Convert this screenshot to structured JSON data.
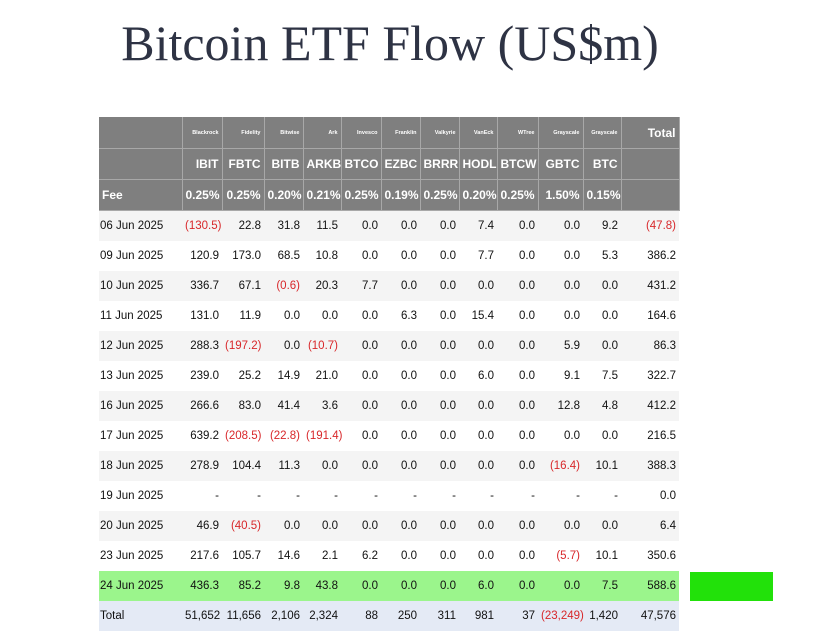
{
  "title": "Bitcoin ETF Flow (US$m)",
  "colors": {
    "header_bg": "#7f7f7f",
    "negative": "#d8272a",
    "highlight_row": "#9bf58c",
    "green_box": "#22e10a"
  },
  "header": {
    "issuers": [
      "Blackrock",
      "Fidelity",
      "Bitwise",
      "Ark",
      "Invesco",
      "Franklin",
      "Valkyrie",
      "VanEck",
      "WTree",
      "Grayscale",
      "Grayscale"
    ],
    "total_label": "Total",
    "tickers": [
      "IBIT",
      "FBTC",
      "BITB",
      "ARKB",
      "BTCO",
      "EZBC",
      "BRRR",
      "HODL",
      "BTCW",
      "GBTC",
      "BTC"
    ],
    "fee_label": "Fee",
    "fees": [
      "0.25%",
      "0.25%",
      "0.20%",
      "0.21%",
      "0.25%",
      "0.19%",
      "0.25%",
      "0.20%",
      "0.25%",
      "1.50%",
      "0.15%"
    ]
  },
  "rows": [
    {
      "date": "06 Jun 2025",
      "values": [
        "(130.5)",
        "22.8",
        "31.8",
        "11.5",
        "0.0",
        "0.0",
        "0.0",
        "7.4",
        "0.0",
        "0.0",
        "9.2"
      ],
      "total": "(47.8)"
    },
    {
      "date": "09 Jun 2025",
      "values": [
        "120.9",
        "173.0",
        "68.5",
        "10.8",
        "0.0",
        "0.0",
        "0.0",
        "7.7",
        "0.0",
        "0.0",
        "5.3"
      ],
      "total": "386.2"
    },
    {
      "date": "10 Jun 2025",
      "values": [
        "336.7",
        "67.1",
        "(0.6)",
        "20.3",
        "7.7",
        "0.0",
        "0.0",
        "0.0",
        "0.0",
        "0.0",
        "0.0"
      ],
      "total": "431.2"
    },
    {
      "date": "11 Jun 2025",
      "values": [
        "131.0",
        "11.9",
        "0.0",
        "0.0",
        "0.0",
        "6.3",
        "0.0",
        "15.4",
        "0.0",
        "0.0",
        "0.0"
      ],
      "total": "164.6"
    },
    {
      "date": "12 Jun 2025",
      "values": [
        "288.3",
        "(197.2)",
        "0.0",
        "(10.7)",
        "0.0",
        "0.0",
        "0.0",
        "0.0",
        "0.0",
        "5.9",
        "0.0"
      ],
      "total": "86.3"
    },
    {
      "date": "13 Jun 2025",
      "values": [
        "239.0",
        "25.2",
        "14.9",
        "21.0",
        "0.0",
        "0.0",
        "0.0",
        "6.0",
        "0.0",
        "9.1",
        "7.5"
      ],
      "total": "322.7"
    },
    {
      "date": "16 Jun 2025",
      "values": [
        "266.6",
        "83.0",
        "41.4",
        "3.6",
        "0.0",
        "0.0",
        "0.0",
        "0.0",
        "0.0",
        "12.8",
        "4.8"
      ],
      "total": "412.2"
    },
    {
      "date": "17 Jun 2025",
      "values": [
        "639.2",
        "(208.5)",
        "(22.8)",
        "(191.4)",
        "0.0",
        "0.0",
        "0.0",
        "0.0",
        "0.0",
        "0.0",
        "0.0"
      ],
      "total": "216.5"
    },
    {
      "date": "18 Jun 2025",
      "values": [
        "278.9",
        "104.4",
        "11.3",
        "0.0",
        "0.0",
        "0.0",
        "0.0",
        "0.0",
        "0.0",
        "(16.4)",
        "10.1"
      ],
      "total": "388.3"
    },
    {
      "date": "19 Jun 2025",
      "values": [
        "-",
        "-",
        "-",
        "-",
        "-",
        "-",
        "-",
        "-",
        "-",
        "-",
        "-"
      ],
      "total": "0.0"
    },
    {
      "date": "20 Jun 2025",
      "values": [
        "46.9",
        "(40.5)",
        "0.0",
        "0.0",
        "0.0",
        "0.0",
        "0.0",
        "0.0",
        "0.0",
        "0.0",
        "0.0"
      ],
      "total": "6.4"
    },
    {
      "date": "23 Jun 2025",
      "values": [
        "217.6",
        "105.7",
        "14.6",
        "2.1",
        "6.2",
        "0.0",
        "0.0",
        "0.0",
        "0.0",
        "(5.7)",
        "10.1"
      ],
      "total": "350.6"
    },
    {
      "date": "24 Jun 2025",
      "values": [
        "436.3",
        "85.2",
        "9.8",
        "43.8",
        "0.0",
        "0.0",
        "0.0",
        "6.0",
        "0.0",
        "0.0",
        "7.5"
      ],
      "total": "588.6",
      "highlight": true
    },
    {
      "date": "Total",
      "values": [
        "51,652",
        "11,656",
        "2,106",
        "2,324",
        "88",
        "250",
        "311",
        "981",
        "37",
        "(23,249)",
        "1,420"
      ],
      "total": "47,576",
      "is_total": true
    }
  ]
}
